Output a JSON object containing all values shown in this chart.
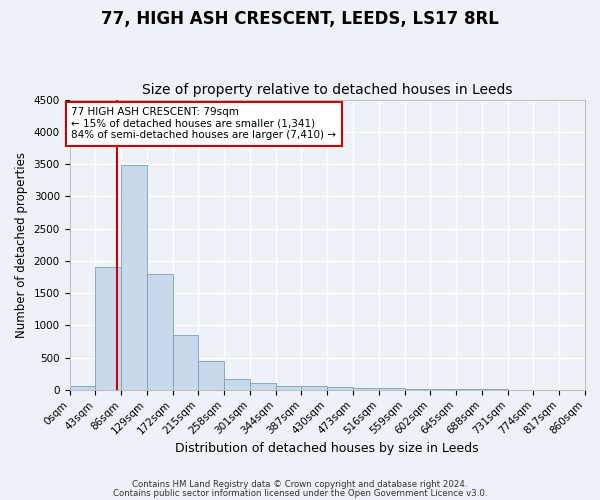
{
  "title1": "77, HIGH ASH CRESCENT, LEEDS, LS17 8RL",
  "title2": "Size of property relative to detached houses in Leeds",
  "xlabel": "Distribution of detached houses by size in Leeds",
  "ylabel": "Number of detached properties",
  "bin_edges": [
    0,
    43,
    86,
    129,
    172,
    215,
    258,
    301,
    344,
    387,
    430,
    473,
    516,
    559,
    602,
    645,
    688,
    731,
    774,
    817,
    860
  ],
  "bar_heights": [
    55,
    1900,
    3490,
    1790,
    855,
    450,
    175,
    100,
    65,
    55,
    45,
    35,
    25,
    15,
    12,
    8,
    6,
    4,
    2,
    1
  ],
  "bar_color": "#c9d9ec",
  "bar_edge_color": "#7a9fc0",
  "property_size": 79,
  "vline_color": "#cc0000",
  "annotation_box_color": "#cc0000",
  "annotation_line1": "77 HIGH ASH CRESCENT: 79sqm",
  "annotation_line2": "← 15% of detached houses are smaller (1,341)",
  "annotation_line3": "84% of semi-detached houses are larger (7,410) →",
  "ylim": [
    0,
    4500
  ],
  "yticks": [
    0,
    500,
    1000,
    1500,
    2000,
    2500,
    3000,
    3500,
    4000,
    4500
  ],
  "xlim": [
    0,
    860
  ],
  "footer1": "Contains HM Land Registry data © Crown copyright and database right 2024.",
  "footer2": "Contains public sector information licensed under the Open Government Licence v3.0.",
  "bg_color": "#eef2f8",
  "grid_color": "#ffffff",
  "title1_fontsize": 12,
  "title2_fontsize": 10,
  "tick_fontsize": 7.5,
  "ylabel_fontsize": 8.5,
  "xlabel_fontsize": 9
}
